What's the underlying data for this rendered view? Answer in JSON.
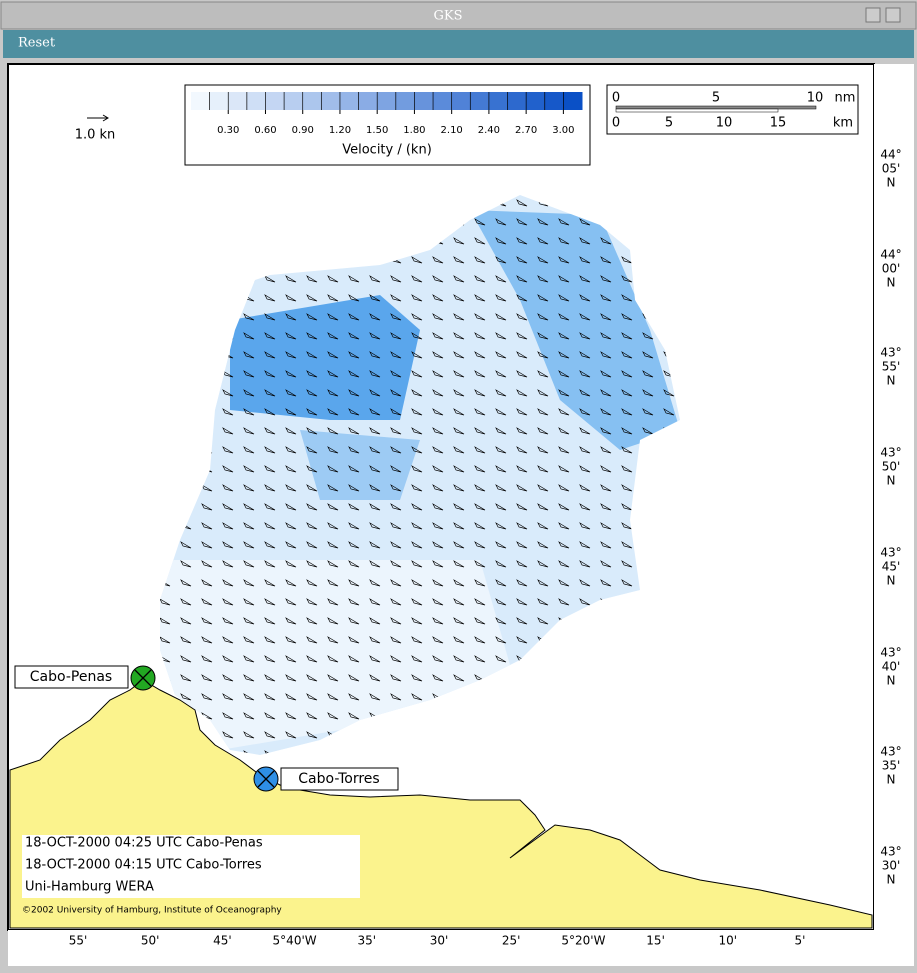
{
  "window": {
    "title": "GKS",
    "button": "Reset"
  },
  "map": {
    "reference_arrow": "1.0 kn",
    "colorbar": {
      "label": "Velocity / (kn)",
      "lim": [
        0,
        3.15
      ],
      "colors": [
        "#f2f8fe",
        "#0a50c6"
      ],
      "ticks": [
        {
          "value": 0.3,
          "label": "0.30"
        },
        {
          "value": 0.6,
          "label": "0.60"
        },
        {
          "value": 0.9,
          "label": "0.90"
        },
        {
          "value": 1.2,
          "label": "1.20"
        },
        {
          "value": 1.5,
          "label": "1.50"
        },
        {
          "value": 1.8,
          "label": "1.80"
        },
        {
          "value": 2.1,
          "label": "2.10"
        },
        {
          "value": 2.4,
          "label": "2.40"
        },
        {
          "value": 2.7,
          "label": "2.70"
        },
        {
          "value": 3.0,
          "label": "3.00"
        }
      ]
    },
    "scale_bar": {
      "nm": [
        "0",
        "5",
        "10",
        "nm"
      ],
      "km": [
        "0",
        "5",
        "10",
        "15",
        "km"
      ]
    },
    "stations": [
      {
        "name": "Cabo-Penas",
        "color": "#22a822"
      },
      {
        "name": "Cabo-Torres",
        "color": "#2e8fe6"
      }
    ],
    "info": [
      "18-OCT-2000 04:25 UTC Cabo-Penas",
      "18-OCT-2000 04:15 UTC Cabo-Torres",
      "Uni-Hamburg WERA"
    ],
    "copyright": "©2002 University of Hamburg, Institute of Oceanography",
    "lat_labels": [
      [
        "44°",
        "05'",
        "N"
      ],
      [
        "44°",
        "00'",
        "N"
      ],
      [
        "43°",
        "55'",
        "N"
      ],
      [
        "43°",
        "50'",
        "N"
      ],
      [
        "43°",
        "45'",
        "N"
      ],
      [
        "43°",
        "40'",
        "N"
      ],
      [
        "43°",
        "35'",
        "N"
      ],
      [
        "43°",
        "30'",
        "N"
      ]
    ],
    "lon_labels": [
      "55'",
      "50'",
      "45'",
      "5°40'W",
      "35'",
      "30'",
      "25'",
      "5°20'W",
      "15'",
      "10'",
      "5'"
    ]
  }
}
